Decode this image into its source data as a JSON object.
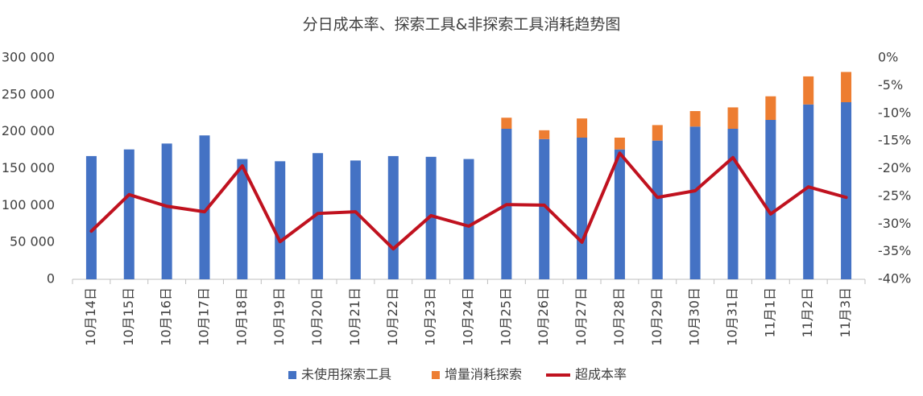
{
  "chart_data": {
    "type": "bar",
    "stacked": true,
    "title": "分日成本率、探索工具&非探索工具消耗趋势图",
    "categories": [
      "10月14日",
      "10月15日",
      "10月16日",
      "10月17日",
      "10月18日",
      "10月19日",
      "10月20日",
      "10月21日",
      "10月22日",
      "10月23日",
      "10月24日",
      "10月25日",
      "10月26日",
      "10月27日",
      "10月28日",
      "10月29日",
      "10月30日",
      "10月31日",
      "11月1日",
      "11月2日",
      "11月3日"
    ],
    "series": [
      {
        "name": "未使用探索工具",
        "color": "#4472c4",
        "values": [
          167000,
          176000,
          184000,
          195000,
          163000,
          160000,
          171000,
          161000,
          167000,
          166000,
          163000,
          204000,
          190000,
          192000,
          176000,
          188000,
          207000,
          204000,
          216000,
          237000,
          240000
        ]
      },
      {
        "name": "增量消耗探索",
        "color": "#ed7d31",
        "values": [
          null,
          null,
          null,
          null,
          null,
          null,
          null,
          null,
          null,
          null,
          null,
          15000,
          12000,
          26000,
          16000,
          21000,
          21000,
          29000,
          32000,
          38000,
          41000
        ]
      },
      {
        "name": "超成本率",
        "color": "#c0121f",
        "type": "line",
        "axis": "y2",
        "values": [
          -31.3,
          -24.7,
          -26.8,
          -27.8,
          -19.5,
          -33.2,
          -28.1,
          -27.8,
          -34.5,
          -28.5,
          -30.4,
          -26.5,
          -26.6,
          -33.3,
          -17.2,
          -25.2,
          -24.0,
          -18.0,
          -28.2,
          -23.3,
          -25.2
        ]
      }
    ],
    "ylim": [
      0,
      300000
    ],
    "yticks": [
      0,
      {
        "value": 50000,
        "label": "50 000"
      },
      {
        "value": 100000,
        "label": "100 000"
      },
      {
        "value": 150000,
        "label": "150 000"
      },
      {
        "value": 200000,
        "label": "200 000"
      },
      {
        "value": 250000,
        "label": "250 000"
      },
      {
        "value": 300000,
        "label": "300 000"
      }
    ],
    "y2lim": [
      -40,
      0
    ],
    "y2ticks": [
      {
        "value": 0,
        "label": "0%"
      },
      {
        "value": -5,
        "label": "-5%"
      },
      {
        "value": -10,
        "label": "-10%"
      },
      {
        "value": -15,
        "label": "-15%"
      },
      {
        "value": -20,
        "label": "-20%"
      },
      {
        "value": -25,
        "label": "-25%"
      },
      {
        "value": -30,
        "label": "-30%"
      },
      {
        "value": -35,
        "label": "-35%"
      },
      {
        "value": -40,
        "label": "-40%"
      }
    ],
    "grid": false,
    "legend": "bottom"
  }
}
